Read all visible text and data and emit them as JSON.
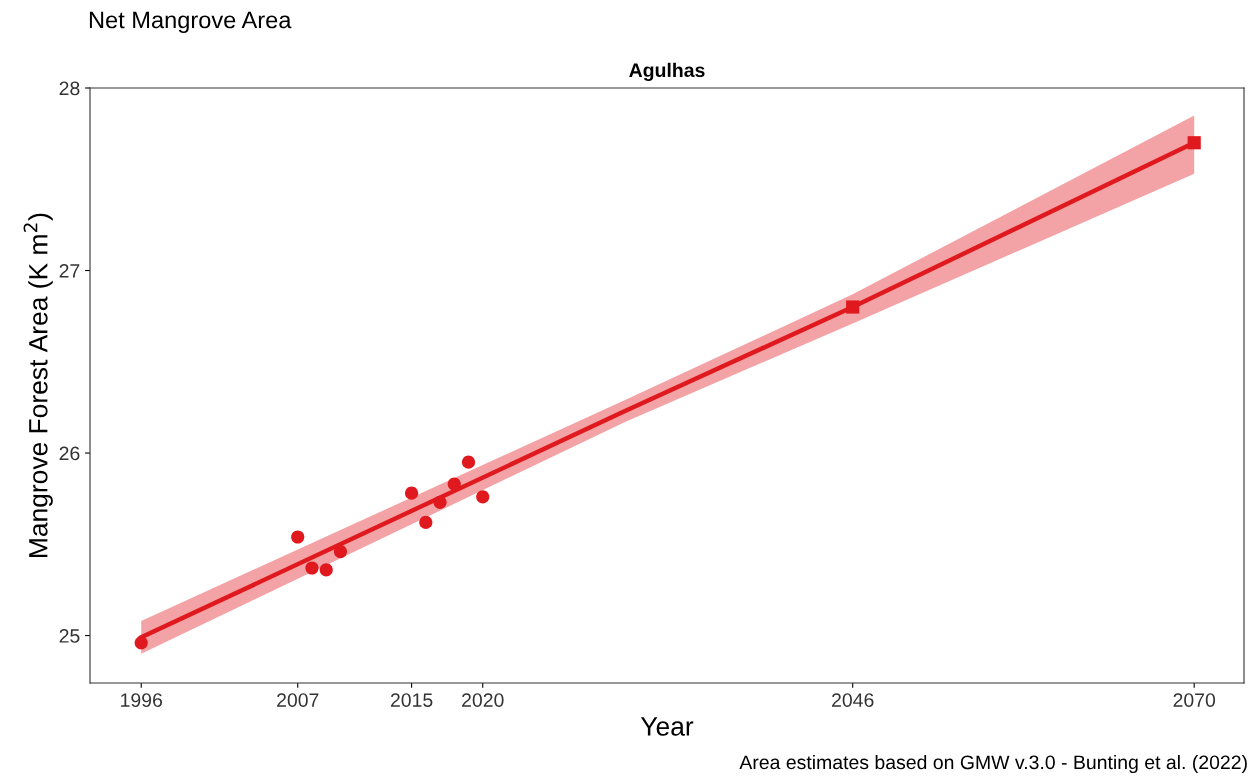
{
  "chart_data": {
    "type": "scatter",
    "title": "Net Mangrove Area",
    "subtitle": "Agulhas",
    "xlabel": "Year",
    "ylabel": "Mangrove Forest Area (K m$^{2}$)",
    "annotations": [
      "Area estimates based on GMW v.3.0 - Bunting et al. (2022)"
    ],
    "series": [
      {
        "color": "#e0191f",
        "marker": "circle",
        "x": [
          1996,
          2007,
          2008,
          2009,
          2010,
          2015,
          2016,
          2017,
          2018,
          2019,
          2020
        ],
        "values": [
          24.96,
          25.54,
          25.37,
          25.36,
          25.46,
          25.78,
          25.62,
          25.73,
          25.83,
          25.95,
          25.76
        ]
      },
      {
        "type": "line",
        "color": "#e0191f",
        "marker": "none",
        "line_style": "solid",
        "x": [
          1996,
          2030,
          2046,
          2070
        ],
        "values": [
          24.99,
          26.23,
          26.8,
          27.7
        ],
        "lower": [
          24.9,
          26.17,
          26.71,
          27.53
        ],
        "upper": [
          25.08,
          26.29,
          26.87,
          27.85
        ]
      },
      {
        "color": "#e0191f",
        "marker": "square",
        "x": [
          2046,
          2070
        ],
        "values": [
          26.8,
          27.7
        ]
      }
    ],
    "xlim": [
      1992.4,
      2073.5
    ],
    "xticks": [
      1996,
      2007,
      2015,
      2020,
      2046,
      2070
    ],
    "ylim": [
      24.74,
      28.0
    ],
    "yticks": [
      25,
      26,
      27,
      28
    ],
    "grid": false,
    "legend": false
  }
}
